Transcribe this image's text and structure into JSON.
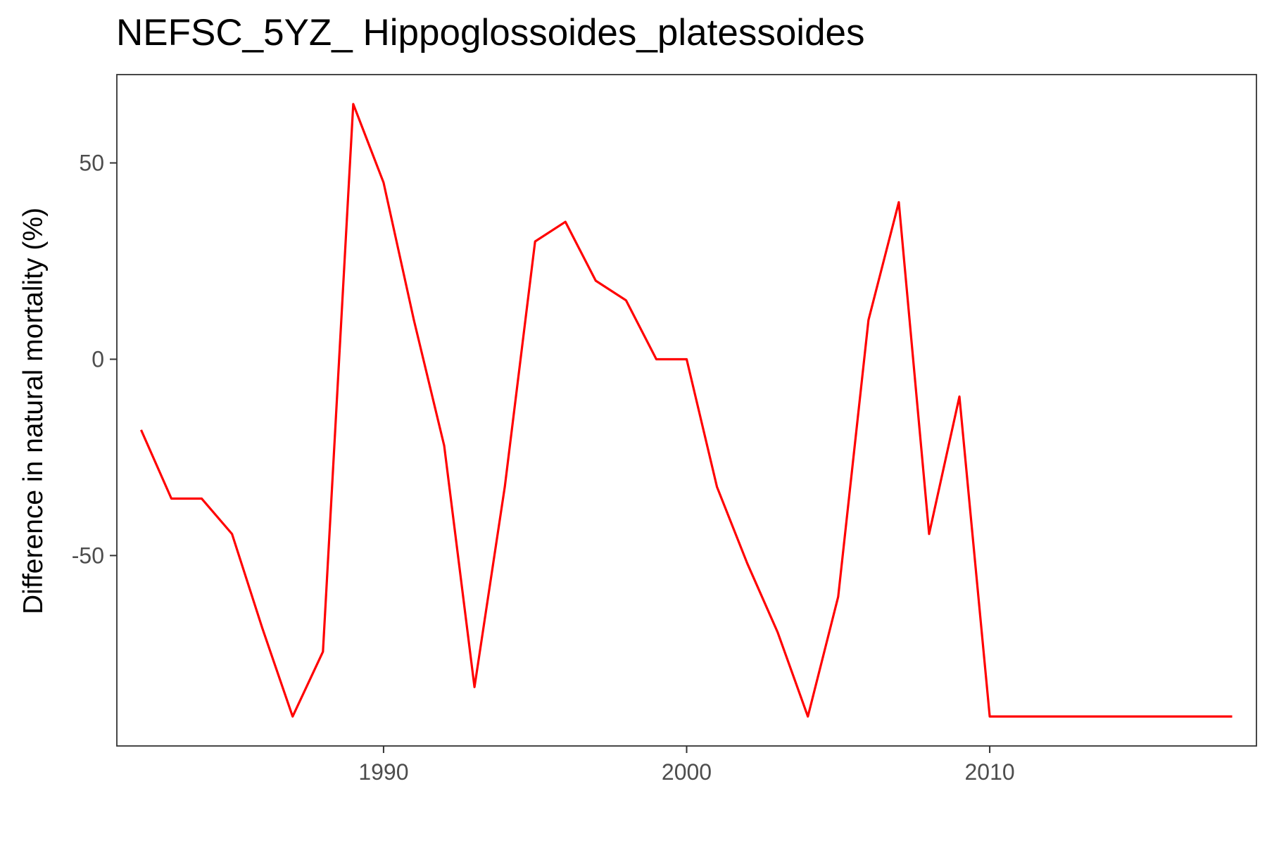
{
  "chart_data": {
    "type": "line",
    "title": "NEFSC_5YZ_ Hippoglossoides_platessoides",
    "xlabel": "",
    "ylabel": "Difference in natural mortality (%)",
    "xlim": [
      1981.2,
      2018.8
    ],
    "ylim": [
      -98.5,
      72.5
    ],
    "x_ticks": [
      1990,
      2000,
      2010
    ],
    "y_ticks": [
      -50,
      0,
      50
    ],
    "x_tick_labels": [
      "1990",
      "2000",
      "2010"
    ],
    "y_tick_labels": [
      "-50",
      "0",
      "50"
    ],
    "grid": false,
    "legend": "none",
    "line_color": "#ff0000",
    "series": [
      {
        "x": [
          1982,
          1983,
          1984,
          1985,
          1986,
          1987,
          1988,
          1989,
          1990,
          1991,
          1992,
          1993,
          1994,
          1995,
          1996,
          1997,
          1998,
          1999,
          2000,
          2001,
          2002,
          2003,
          2004,
          2005,
          2006,
          2007,
          2008,
          2009,
          2010,
          2011,
          2012,
          2013,
          2014,
          2015,
          2016,
          2017,
          2018
        ],
        "values": [
          -18,
          -35.5,
          -35.5,
          -44.5,
          -68.5,
          -91,
          -74.5,
          65,
          45,
          10,
          -22,
          -83.5,
          -32.5,
          30,
          35,
          20,
          15,
          0,
          0,
          -32.5,
          -52,
          -69.5,
          -91,
          -60.5,
          10,
          40,
          -44.5,
          -9.5,
          -91,
          -91,
          -91,
          -91,
          -91,
          -91,
          -91,
          -91,
          -91
        ]
      }
    ]
  }
}
